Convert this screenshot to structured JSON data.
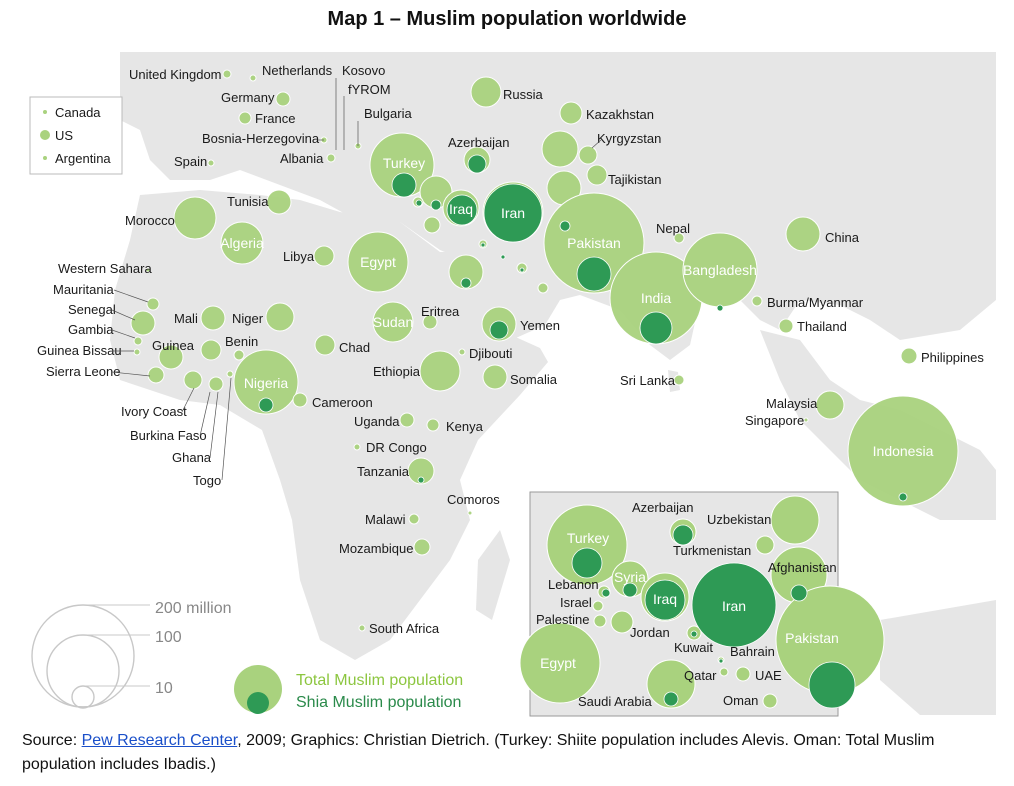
{
  "title": "Map 1 – Muslim population worldwide",
  "colors": {
    "total": "#93c66b",
    "total_fill": "#a9d27e",
    "shia": "#2e9a55",
    "land": "#e6e6e6",
    "sea": "#ffffff",
    "legend_total_text": "#8cc63f",
    "legend_shia_text": "#2a8a4a"
  },
  "legend": {
    "size_values": [
      "200 million",
      "100",
      "10"
    ],
    "total_label": "Total Muslim population",
    "shia_label": "Shia Muslim population",
    "americas": [
      "Canada",
      "US",
      "Argentina"
    ]
  },
  "labels": [
    "United Kingdom",
    "Netherlands",
    "Kosovo",
    "fYROM",
    "Germany",
    "France",
    "Bulgaria",
    "Bosnia-Herzegovina",
    "Albania",
    "Spain",
    "Russia",
    "Kazakhstan",
    "Kyrgyzstan",
    "Azerbaijan",
    "Turkey",
    "Tajikistan",
    "Iraq",
    "Iran",
    "Tunisia",
    "Morocco",
    "Algeria",
    "Libya",
    "Egypt",
    "Nepal",
    "China",
    "Pakistan",
    "Bangladesh",
    "India",
    "Burma/Myanmar",
    "Thailand",
    "Philippines",
    "Western Sahara",
    "Mauritania",
    "Senegal",
    "Gambia",
    "Guinea Bissau",
    "Sierra Leone",
    "Guinea",
    "Mali",
    "Niger",
    "Benin",
    "Chad",
    "Sudan",
    "Eritrea",
    "Yemen",
    "Djibouti",
    "Ethiopia",
    "Somalia",
    "Nigeria",
    "Cameroon",
    "Ivory Coast",
    "Burkina Faso",
    "Ghana",
    "Togo",
    "Uganda",
    "Kenya",
    "DR Congo",
    "Tanzania",
    "Comoros",
    "Malawi",
    "Mozambique",
    "South Africa",
    "Sri Lanka",
    "Malaysia",
    "Singapore",
    "Indonesia"
  ],
  "inset_labels": [
    "Azerbaijan",
    "Uzbekistan",
    "Turkey",
    "Turkmenistan",
    "Afghanistan",
    "Syria",
    "Lebanon",
    "Israel",
    "Palestine",
    "Iraq",
    "Iran",
    "Jordan",
    "Kuwait",
    "Bahrain",
    "Pakistan",
    "Egypt",
    "Qatar",
    "UAE",
    "Saudi Arabia",
    "Oman"
  ],
  "bubble_labels": [
    "Turkey",
    "Iraq",
    "Iran",
    "Algeria",
    "Egypt",
    "Pakistan",
    "Bangladesh",
    "India",
    "Sudan",
    "Nigeria",
    "Indonesia"
  ],
  "inset_bubble_labels": [
    "Turkey",
    "Syria",
    "Iraq",
    "Iran",
    "Pakistan",
    "Egypt"
  ],
  "source": {
    "prefix": "Source: ",
    "link_text": "Pew Research Center",
    "suffix": ", 2009; Graphics: Christian Dietrich. (Turkey: Shiite population includes Alevis. Oman: Total Muslim population includes Ibadis.)"
  }
}
